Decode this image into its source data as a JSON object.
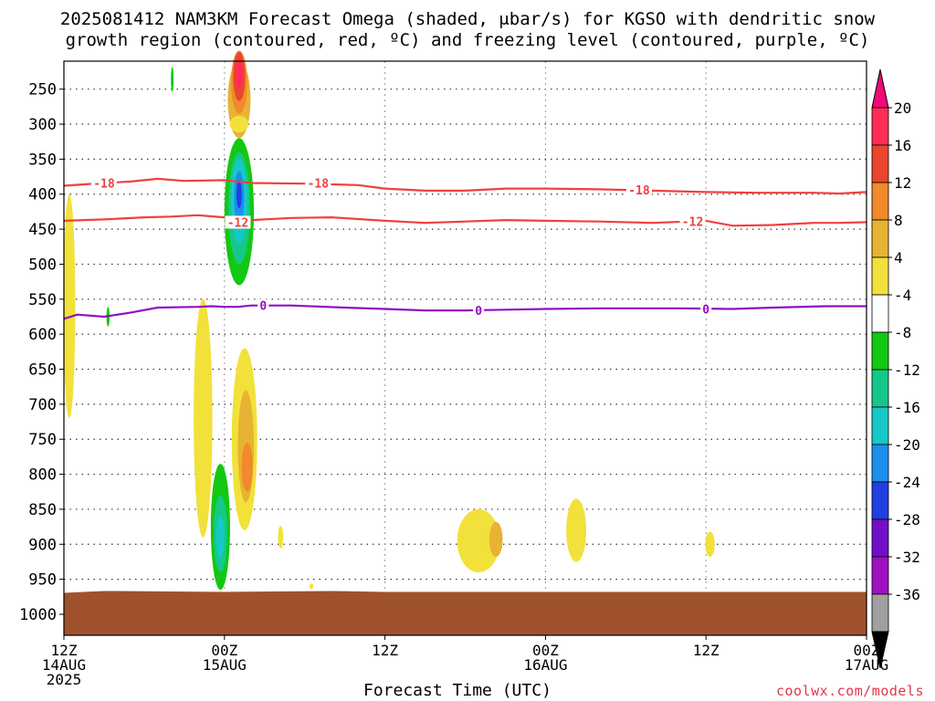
{
  "title_line1": "2025081412 NAM3KM Forecast Omega (shaded, μbar/s) for KGSO with dendritic snow",
  "title_line2": "growth region (contoured, red, ºC) and freezing level (contoured, purple, ºC)",
  "xlabel": "Forecast Time (UTC)",
  "credit": "coolwx.com/models",
  "chart_data": {
    "type": "heatmap",
    "x_ticks": [
      {
        "hours": 0,
        "lines": [
          "12Z",
          "14AUG",
          "2025"
        ]
      },
      {
        "hours": 12,
        "lines": [
          "00Z",
          "15AUG"
        ]
      },
      {
        "hours": 24,
        "lines": [
          "12Z"
        ]
      },
      {
        "hours": 36,
        "lines": [
          "00Z",
          "16AUG"
        ]
      },
      {
        "hours": 48,
        "lines": [
          "12Z"
        ]
      },
      {
        "hours": 60,
        "lines": [
          "00Z",
          "17AUG"
        ]
      }
    ],
    "xlim_hours": [
      0,
      60
    ],
    "ylabel_units": "hPa",
    "ylim_hpa": [
      210,
      1030
    ],
    "y_ticks": [
      250,
      300,
      350,
      400,
      450,
      500,
      550,
      600,
      650,
      700,
      750,
      800,
      850,
      900,
      950,
      1000
    ],
    "colorbar": {
      "ticks": [
        "20",
        "16",
        "12",
        "8",
        "4",
        "-4",
        "-8",
        "-12",
        "-16",
        "-20",
        "-24",
        "-28",
        "-32",
        "-36"
      ],
      "colors": [
        "#ff2d55",
        "#e8462e",
        "#f08a2c",
        "#e8b232",
        "#f2e13a",
        "#ffffff",
        "#12c812",
        "#15c88a",
        "#18c8c8",
        "#1b8fee",
        "#2040e0",
        "#7010c8",
        "#a010c0",
        "#a0a0a0"
      ],
      "top_arrow_color": "#ee0a78",
      "bottom_arrow_color": "#000000"
    },
    "contours": [
      {
        "label": "-18",
        "color": "#f04040",
        "points": [
          [
            0,
            388
          ],
          [
            3,
            384
          ],
          [
            5,
            382
          ],
          [
            7,
            378
          ],
          [
            9,
            381
          ],
          [
            12,
            380
          ],
          [
            14,
            384
          ],
          [
            18,
            385
          ],
          [
            22,
            387
          ],
          [
            24,
            392
          ],
          [
            27,
            395
          ],
          [
            30,
            395
          ],
          [
            33,
            392
          ],
          [
            36,
            392
          ],
          [
            40,
            393
          ],
          [
            44,
            395
          ],
          [
            48,
            397
          ],
          [
            52,
            398
          ],
          [
            56,
            398
          ],
          [
            58,
            399
          ],
          [
            60,
            397
          ]
        ]
      },
      {
        "label": "-12",
        "color": "#f04040",
        "points": [
          [
            0,
            438
          ],
          [
            3,
            436
          ],
          [
            6,
            433
          ],
          [
            8,
            432
          ],
          [
            10,
            430
          ],
          [
            12,
            433
          ],
          [
            14,
            437
          ],
          [
            17,
            434
          ],
          [
            20,
            433
          ],
          [
            24,
            438
          ],
          [
            27,
            441
          ],
          [
            30,
            439
          ],
          [
            33,
            437
          ],
          [
            36,
            438
          ],
          [
            40,
            439
          ],
          [
            44,
            441
          ],
          [
            48,
            438
          ],
          [
            50,
            445
          ],
          [
            53,
            444
          ],
          [
            56,
            441
          ],
          [
            58,
            441
          ],
          [
            60,
            440
          ]
        ]
      },
      {
        "label": "0",
        "color": "#9010c0",
        "points": [
          [
            0,
            578
          ],
          [
            1,
            572
          ],
          [
            3,
            575
          ],
          [
            5,
            569
          ],
          [
            7,
            562
          ],
          [
            10,
            561
          ],
          [
            11,
            560
          ],
          [
            12,
            561
          ],
          [
            13,
            561
          ],
          [
            14,
            559
          ],
          [
            17,
            559
          ],
          [
            21,
            562
          ],
          [
            24,
            564
          ],
          [
            27,
            566
          ],
          [
            30,
            566
          ],
          [
            33,
            565
          ],
          [
            36,
            564
          ],
          [
            40,
            563
          ],
          [
            44,
            563
          ],
          [
            46,
            563
          ],
          [
            50,
            564
          ],
          [
            53,
            562
          ],
          [
            57,
            560
          ],
          [
            60,
            560
          ]
        ]
      }
    ],
    "contour_labels": [
      {
        "text": "-18",
        "hours": 3,
        "hpa": 384
      },
      {
        "text": "-18",
        "hours": 19,
        "hpa": 384
      },
      {
        "text": "-12",
        "hours": 13,
        "hpa": 440
      },
      {
        "text": "0",
        "hours": 14.9,
        "hpa": 559
      },
      {
        "text": "-18",
        "hours": 43,
        "hpa": 394
      },
      {
        "text": "-12",
        "hours": 47,
        "hpa": 439
      },
      {
        "text": "0",
        "hours": 31,
        "hpa": 566
      },
      {
        "text": "0",
        "hours": 48,
        "hpa": 564
      }
    ],
    "shaded_features": [
      {
        "color": "#e8b232",
        "hours": 13.1,
        "hpa": 265,
        "rh": 0.85,
        "rv": 55
      },
      {
        "color": "#f2e13a",
        "hours": 13.1,
        "hpa": 300,
        "rh": 0.7,
        "rv": 12
      },
      {
        "color": "#f08a2c",
        "hours": 13.1,
        "hpa": 240,
        "rh": 0.6,
        "rv": 45
      },
      {
        "color": "#e8462e",
        "hours": 13.1,
        "hpa": 232,
        "rh": 0.45,
        "rv": 35
      },
      {
        "color": "#ff2d55",
        "hours": 13.1,
        "hpa": 228,
        "rh": 0.28,
        "rv": 22
      },
      {
        "color": "#12c812",
        "hours": 8.1,
        "hpa": 236,
        "rh": 0.1,
        "rv": 18
      },
      {
        "color": "#12c812",
        "hours": 13.1,
        "hpa": 425,
        "rh": 1.1,
        "rv": 105
      },
      {
        "color": "#15c88a",
        "hours": 13.1,
        "hpa": 420,
        "rh": 0.8,
        "rv": 80
      },
      {
        "color": "#18c8c8",
        "hours": 13.1,
        "hpa": 410,
        "rh": 0.6,
        "rv": 60
      },
      {
        "color": "#1b8fee",
        "hours": 13.1,
        "hpa": 405,
        "rh": 0.38,
        "rv": 38
      },
      {
        "color": "#2040e0",
        "hours": 13.1,
        "hpa": 400,
        "rh": 0.2,
        "rv": 20
      },
      {
        "color": "#f2e13a",
        "hours": 0.4,
        "hpa": 560,
        "rh": 0.45,
        "rv": 160
      },
      {
        "color": "#12c812",
        "hours": 3.3,
        "hpa": 575,
        "rh": 0.12,
        "rv": 14
      },
      {
        "color": "#f2e13a",
        "hours": 10.4,
        "hpa": 720,
        "rh": 0.7,
        "rv": 170
      },
      {
        "color": "#f2e13a",
        "hours": 13.5,
        "hpa": 750,
        "rh": 0.95,
        "rv": 130
      },
      {
        "color": "#e8b232",
        "hours": 13.6,
        "hpa": 760,
        "rh": 0.6,
        "rv": 80
      },
      {
        "color": "#f08a2c",
        "hours": 13.7,
        "hpa": 790,
        "rh": 0.42,
        "rv": 35
      },
      {
        "color": "#12c812",
        "hours": 11.7,
        "hpa": 875,
        "rh": 0.72,
        "rv": 90
      },
      {
        "color": "#15c88a",
        "hours": 11.7,
        "hpa": 885,
        "rh": 0.5,
        "rv": 55
      },
      {
        "color": "#18c8c8",
        "hours": 11.7,
        "hpa": 890,
        "rh": 0.3,
        "rv": 30
      },
      {
        "color": "#f2e13a",
        "hours": 16.2,
        "hpa": 890,
        "rh": 0.2,
        "rv": 16
      },
      {
        "color": "#f2e13a",
        "hours": 18.5,
        "hpa": 960,
        "rh": 0.15,
        "rv": 4
      },
      {
        "color": "#f2e13a",
        "hours": 31.0,
        "hpa": 895,
        "rh": 1.6,
        "rv": 45
      },
      {
        "color": "#e8b232",
        "hours": 32.3,
        "hpa": 893,
        "rh": 0.5,
        "rv": 25
      },
      {
        "color": "#f2e13a",
        "hours": 38.3,
        "hpa": 880,
        "rh": 0.75,
        "rv": 45
      },
      {
        "color": "#f2e13a",
        "hours": 48.3,
        "hpa": 900,
        "rh": 0.35,
        "rv": 18
      }
    ],
    "ground": {
      "color": "#a0522d",
      "top_hpa": 968
    }
  }
}
